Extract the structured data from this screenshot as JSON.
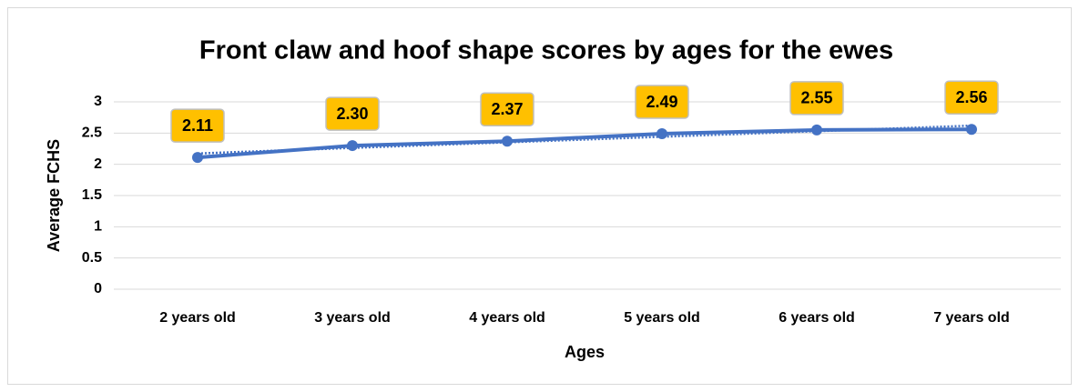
{
  "chart_data": {
    "type": "line",
    "title": "Front claw and hoof shape scores by ages for the ewes",
    "x_label": "Ages",
    "y_label": "Average FCHS",
    "categories": [
      "2 years old",
      "3 years old",
      "4 years old",
      "5 years old",
      "6 years old",
      "7 years old"
    ],
    "series": [
      {
        "name": "Average FCHS",
        "color": "#4472c4",
        "values": [
          2.11,
          2.3,
          2.37,
          2.49,
          2.55,
          2.56
        ],
        "value_labels": [
          "2.11",
          "2.30",
          "2.37",
          "2.49",
          "2.55",
          "2.56"
        ]
      }
    ],
    "ylim": [
      0,
      3
    ],
    "yticks": [
      0,
      0.5,
      1,
      1.5,
      2,
      2.5,
      3
    ],
    "grid": true,
    "trendline": true,
    "label_color": "#ffc000"
  }
}
